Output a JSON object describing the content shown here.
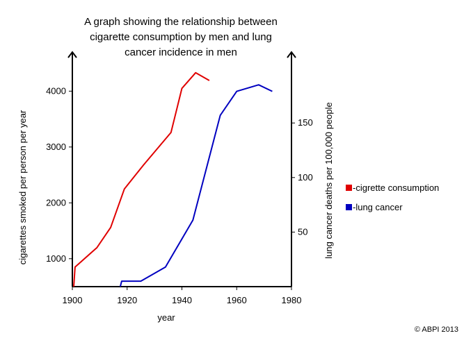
{
  "chart_data": {
    "type": "line",
    "title_lines": [
      "A graph showing the relationship between",
      "cigarette consumption by men and lung",
      "cancer incidence in men"
    ],
    "xlabel": "year",
    "ylabel_left": "cigarettes smoked per person per year",
    "ylabel_right": "lung cancer deaths per 100,000 people",
    "xlim": [
      1900,
      1980
    ],
    "ylim_left": [
      500,
      4700
    ],
    "ylim_right": [
      0,
      215
    ],
    "x_ticks": [
      1900,
      1920,
      1940,
      1960,
      1980
    ],
    "y_left_ticks": [
      1000,
      2000,
      3000,
      4000
    ],
    "y_right_ticks": [
      50,
      100,
      150
    ],
    "series": [
      {
        "name": "-cigrette consumption",
        "axis": "left",
        "color": "#e00000",
        "x": [
          1900.5,
          1901,
          1909,
          1914,
          1919,
          1926,
          1936,
          1940,
          1945,
          1950
        ],
        "y": [
          500,
          850,
          1200,
          1560,
          2250,
          2680,
          3260,
          4050,
          4330,
          4190
        ]
      },
      {
        "name": "-lung cancer",
        "axis": "right",
        "color": "#0000c0",
        "x": [
          1917.5,
          1918,
          1925,
          1934,
          1944,
          1954,
          1960,
          1968,
          1973
        ],
        "y": [
          0,
          5,
          5,
          18,
          61,
          157,
          179,
          185,
          179
        ]
      }
    ],
    "grid": false,
    "legend": "right"
  },
  "copyright": "© ABPI 2013"
}
